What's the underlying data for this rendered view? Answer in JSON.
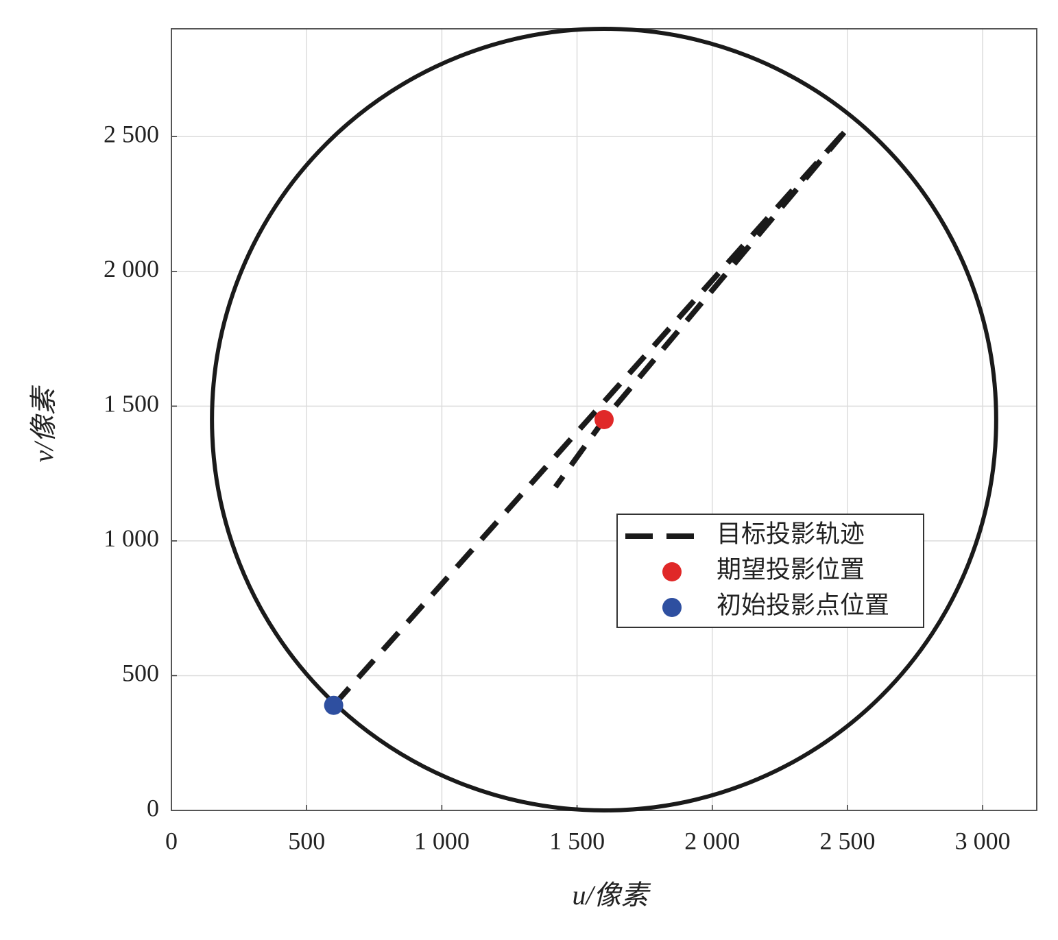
{
  "chart_data": {
    "type": "scatter",
    "xlabel": "u/像素",
    "ylabel": "v/像素",
    "xlim": [
      0,
      3200
    ],
    "ylim": [
      0,
      2900
    ],
    "xticks": [
      0,
      500,
      {
        "value": 1000,
        "label": "1 000"
      },
      {
        "value": 1500,
        "label": "1 500"
      },
      {
        "value": 2000,
        "label": "2 000"
      },
      {
        "value": 2500,
        "label": "2 500"
      },
      {
        "value": 3000,
        "label": "3 000"
      }
    ],
    "yticks": [
      0,
      500,
      {
        "value": 1000,
        "label": "1 000"
      },
      {
        "value": 1500,
        "label": "1 500"
      },
      {
        "value": 2000,
        "label": "2 000"
      },
      {
        "value": 2500,
        "label": "2 500"
      }
    ],
    "grid": true,
    "legend": "right",
    "circle": {
      "center": [
        1600,
        1450
      ],
      "radius": 1450,
      "color": "#1a1a1a"
    },
    "series": [
      {
        "name": "目标投影轨迹",
        "kind": "dashed-line",
        "color": "#1a1a1a",
        "x": [
          600,
          2500,
          1600,
          1420
        ],
        "values": [
          390,
          2530,
          1450,
          1200
        ]
      },
      {
        "name": "期望投影位置",
        "kind": "point",
        "color": "#e02828",
        "x": [
          1600
        ],
        "values": [
          1450
        ]
      },
      {
        "name": "初始投影点位置",
        "kind": "point",
        "color": "#2e4fa0",
        "x": [
          600
        ],
        "values": [
          390
        ]
      }
    ]
  }
}
